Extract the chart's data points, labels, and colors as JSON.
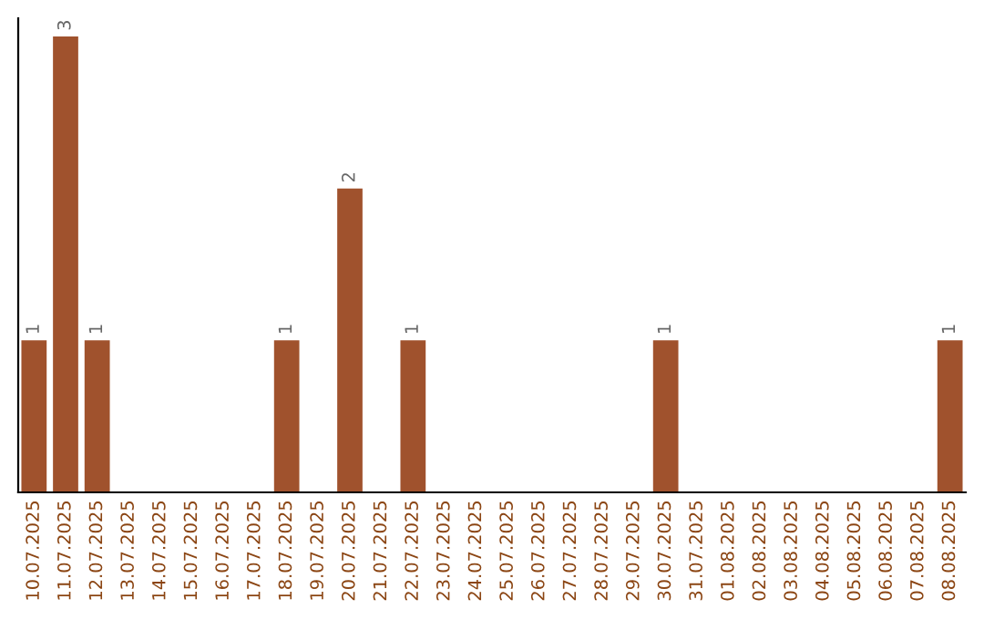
{
  "chart_data": {
    "type": "bar",
    "categories": [
      "10.07.2025",
      "11.07.2025",
      "12.07.2025",
      "13.07.2025",
      "14.07.2025",
      "15.07.2025",
      "16.07.2025",
      "17.07.2025",
      "18.07.2025",
      "19.07.2025",
      "20.07.2025",
      "21.07.2025",
      "22.07.2025",
      "23.07.2025",
      "24.07.2025",
      "25.07.2025",
      "26.07.2025",
      "27.07.2025",
      "28.07.2025",
      "29.07.2025",
      "30.07.2025",
      "31.07.2025",
      "01.08.2025",
      "02.08.2025",
      "03.08.2025",
      "04.08.2025",
      "05.08.2025",
      "06.08.2025",
      "07.08.2025",
      "08.08.2025"
    ],
    "values": [
      1,
      3,
      1,
      0,
      0,
      0,
      0,
      0,
      1,
      0,
      2,
      0,
      1,
      0,
      0,
      0,
      0,
      0,
      0,
      0,
      1,
      0,
      0,
      0,
      0,
      0,
      0,
      0,
      0,
      1
    ],
    "color": "#a0522d",
    "value_labels": [
      "1",
      "3",
      "1",
      null,
      null,
      null,
      null,
      null,
      "1",
      null,
      "2",
      null,
      "1",
      null,
      null,
      null,
      null,
      null,
      null,
      null,
      "1",
      null,
      null,
      null,
      null,
      null,
      null,
      null,
      null,
      "1"
    ],
    "grid": false,
    "legend": false
  }
}
